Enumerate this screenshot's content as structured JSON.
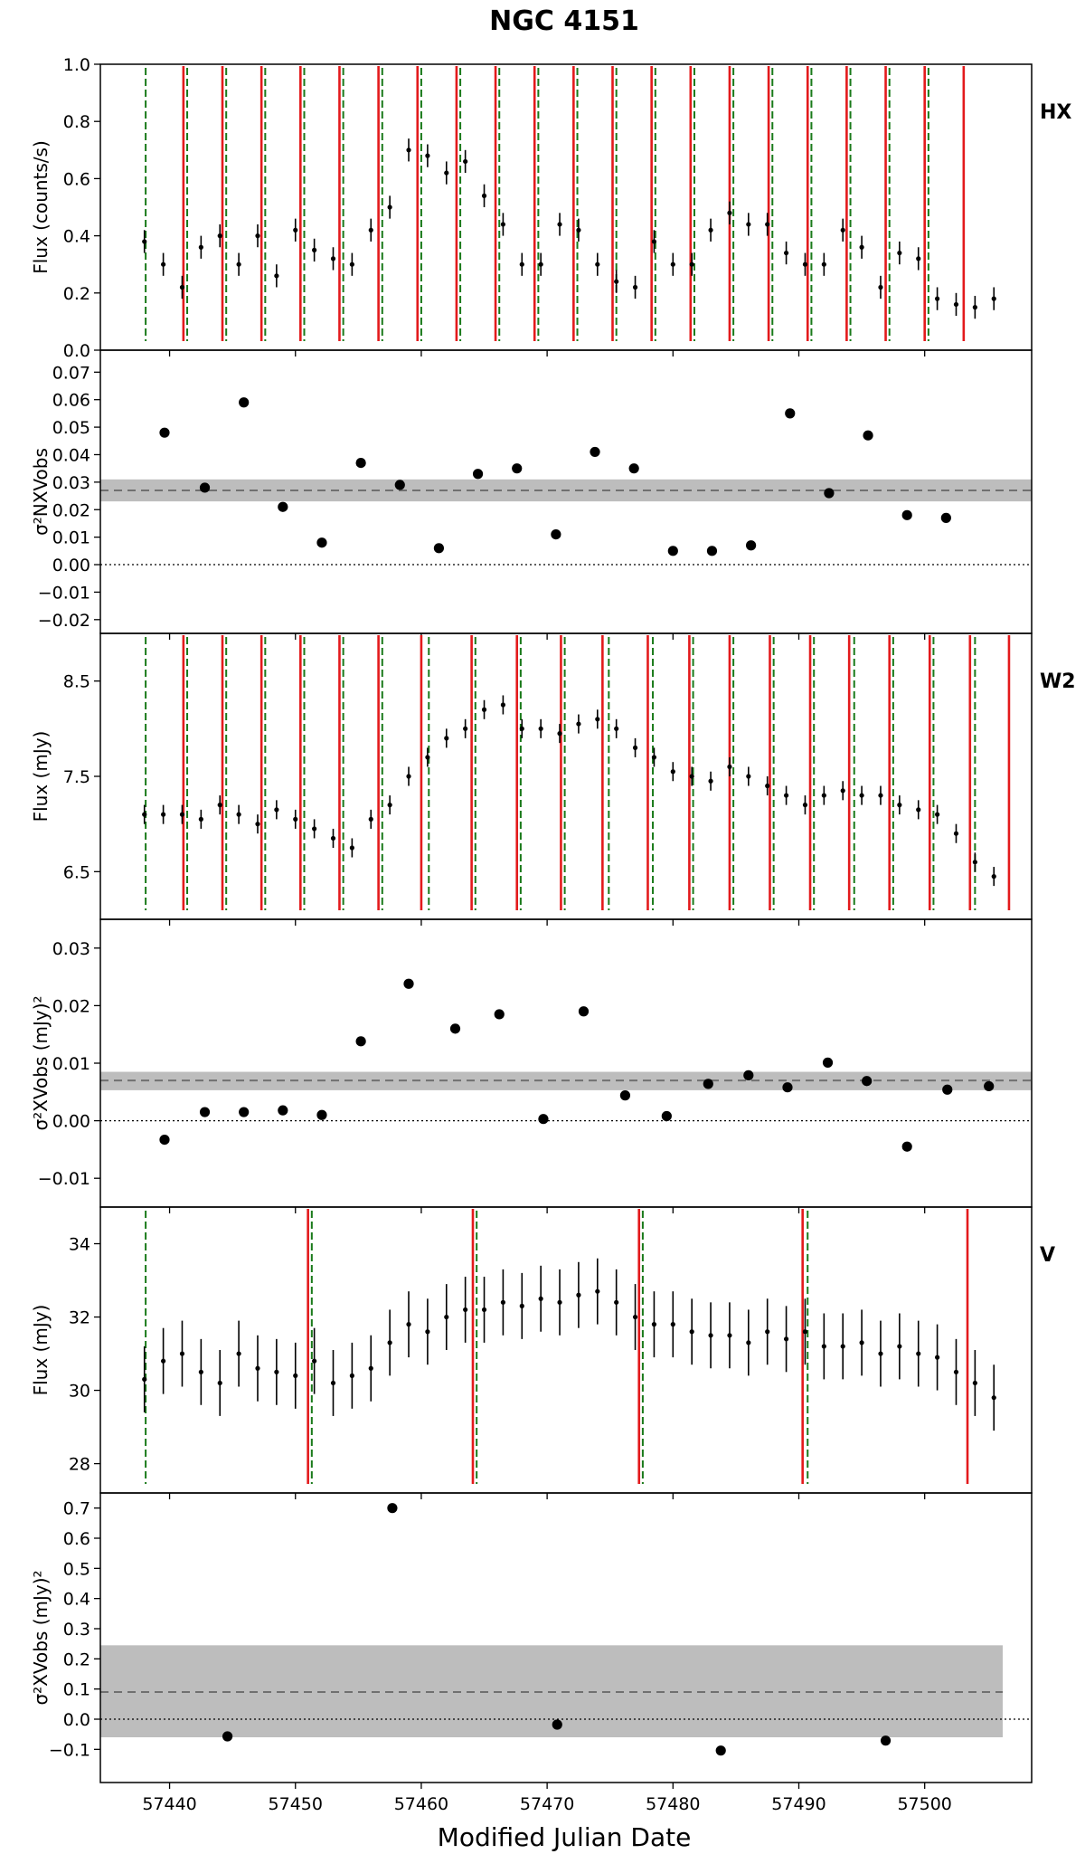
{
  "title": "NGC 4151",
  "xlabel": "Modified Julian Date",
  "chart_data": [
    {
      "id": "hx-flux",
      "type": "scatter",
      "band": "HX",
      "ylabel": "Flux (counts/s)",
      "xlim": [
        57434.5,
        57508.5
      ],
      "ylim": [
        0.0,
        1.0
      ],
      "yticks": [
        "0.0",
        "0.2",
        "0.4",
        "0.6",
        "0.8",
        "1.0"
      ],
      "yerr": 0.04,
      "series": [
        {
          "x": [
            57438.0,
            57439.5,
            57441.0,
            57442.5,
            57444.0,
            57445.5,
            57447.0,
            57448.5,
            57450.0,
            57451.5,
            57453.0,
            57454.5,
            57456.0,
            57457.5,
            57459.0,
            57460.5,
            57462.0,
            57463.5,
            57465.0,
            57466.5,
            57468.0,
            57469.5,
            57471.0,
            57472.5,
            57474.0,
            57475.5,
            57477.0,
            57478.5,
            57480.0,
            57481.5,
            57483.0,
            57484.5,
            57486.0,
            57487.5,
            57489.0,
            57490.5,
            57492.0,
            57493.5,
            57495.0,
            57496.5,
            57498.0,
            57499.5,
            57501.0,
            57502.5,
            57504.0,
            57505.5
          ],
          "y": [
            0.38,
            0.3,
            0.22,
            0.36,
            0.4,
            0.3,
            0.4,
            0.26,
            0.42,
            0.35,
            0.32,
            0.3,
            0.42,
            0.5,
            0.7,
            0.68,
            0.62,
            0.66,
            0.54,
            0.44,
            0.3,
            0.3,
            0.44,
            0.42,
            0.3,
            0.24,
            0.22,
            0.38,
            0.3,
            0.3,
            0.42,
            0.48,
            0.44,
            0.44,
            0.34,
            0.3,
            0.3,
            0.42,
            0.36,
            0.22,
            0.34,
            0.32,
            0.18,
            0.16,
            0.15,
            0.18
          ]
        }
      ],
      "green_dashed": [
        57438.1,
        57441.4,
        57444.5,
        57447.6,
        57450.7,
        57453.8,
        57456.9,
        57460.0,
        57463.1,
        57466.2,
        57469.3,
        57472.4,
        57475.5,
        57478.6,
        57481.7,
        57484.8,
        57487.9,
        57491.0,
        57494.1,
        57497.2,
        57500.3
      ],
      "red_solid": [
        57441.1,
        57444.2,
        57447.3,
        57450.4,
        57453.5,
        57456.6,
        57459.7,
        57462.8,
        57465.9,
        57469.0,
        57472.1,
        57475.2,
        57478.3,
        57481.4,
        57484.5,
        57487.6,
        57490.7,
        57493.8,
        57496.9,
        57500.0,
        57503.1
      ]
    },
    {
      "id": "hx-variance",
      "type": "scatter",
      "ylabel": "σ²NXVobs",
      "xlim": [
        57434.5,
        57508.5
      ],
      "ylim": [
        -0.025,
        0.078
      ],
      "yticks": [
        "−0.02",
        "−0.01",
        "0.00",
        "0.01",
        "0.02",
        "0.03",
        "0.04",
        "0.05",
        "0.06",
        "0.07"
      ],
      "mean": 0.027,
      "band_range": [
        0.023,
        0.031
      ],
      "series": [
        {
          "x": [
            57439.6,
            57442.8,
            57445.9,
            57449.0,
            57452.1,
            57455.2,
            57458.3,
            57461.4,
            57464.5,
            57467.6,
            57470.7,
            57473.8,
            57476.9,
            57480.0,
            57483.1,
            57486.2,
            57489.3,
            57492.4,
            57495.5,
            57498.6,
            57501.7
          ],
          "y": [
            0.048,
            0.028,
            0.059,
            0.021,
            0.008,
            0.037,
            0.029,
            0.006,
            0.033,
            0.035,
            0.011,
            0.041,
            0.035,
            0.005,
            0.005,
            0.007,
            0.055,
            0.026,
            0.047,
            0.018,
            0.017
          ]
        }
      ]
    },
    {
      "id": "w2-flux",
      "type": "scatter",
      "band": "W2",
      "ylabel": "Flux (mJy)",
      "xlim": [
        57434.5,
        57508.5
      ],
      "ylim": [
        6.0,
        9.0
      ],
      "yticks": [
        "6.5",
        "7.5",
        "8.5"
      ],
      "yerr": 0.1,
      "series": [
        {
          "x": [
            57438.0,
            57439.5,
            57441.0,
            57442.5,
            57444.0,
            57445.5,
            57447.0,
            57448.5,
            57450.0,
            57451.5,
            57453.0,
            57454.5,
            57456.0,
            57457.5,
            57459.0,
            57460.5,
            57462.0,
            57463.5,
            57465.0,
            57466.5,
            57468.0,
            57469.5,
            57471.0,
            57472.5,
            57474.0,
            57475.5,
            57477.0,
            57478.5,
            57480.0,
            57481.5,
            57483.0,
            57484.5,
            57486.0,
            57487.5,
            57489.0,
            57490.5,
            57492.0,
            57493.5,
            57495.0,
            57496.5,
            57498.0,
            57499.5,
            57501.0,
            57502.5,
            57504.0,
            57505.5
          ],
          "y": [
            7.1,
            7.1,
            7.1,
            7.05,
            7.2,
            7.1,
            7.0,
            7.15,
            7.05,
            6.95,
            6.85,
            6.75,
            7.05,
            7.2,
            7.5,
            7.7,
            7.9,
            8.0,
            8.2,
            8.25,
            8.0,
            8.0,
            7.95,
            8.05,
            8.1,
            8.0,
            7.8,
            7.7,
            7.55,
            7.5,
            7.45,
            7.6,
            7.5,
            7.4,
            7.3,
            7.2,
            7.3,
            7.35,
            7.3,
            7.3,
            7.2,
            7.15,
            7.1,
            6.9,
            6.6,
            6.45
          ]
        }
      ],
      "green_dashed": [
        57438.1,
        57441.4,
        57444.5,
        57447.6,
        57450.7,
        57453.8,
        57456.9,
        57460.6,
        57464.3,
        57467.9,
        57471.4,
        57474.9,
        57478.4,
        57481.6,
        57484.8,
        57488.0,
        57491.2,
        57494.4,
        57497.5,
        57500.7,
        57504.0
      ],
      "red_solid": [
        57441.1,
        57444.2,
        57447.3,
        57450.4,
        57453.5,
        57456.6,
        57460.0,
        57464.0,
        57467.6,
        57471.1,
        57474.4,
        57478.0,
        57481.3,
        57484.5,
        57487.7,
        57490.9,
        57494.0,
        57497.2,
        57500.4,
        57503.6,
        57506.7
      ]
    },
    {
      "id": "w2-variance",
      "type": "scatter",
      "ylabel": "σ²XVobs (mJy)²",
      "xlim": [
        57434.5,
        57508.5
      ],
      "ylim": [
        -0.015,
        0.035
      ],
      "yticks": [
        "−0.01",
        "0.00",
        "0.01",
        "0.02",
        "0.03"
      ],
      "mean": 0.007,
      "band_range": [
        0.0053,
        0.0085
      ],
      "series": [
        {
          "x": [
            57439.6,
            57442.8,
            57445.9,
            57449.0,
            57452.1,
            57455.2,
            57459.0,
            57462.7,
            57466.2,
            57469.7,
            57472.9,
            57476.2,
            57479.5,
            57482.8,
            57486.0,
            57489.1,
            57492.3,
            57495.4,
            57498.6,
            57501.8,
            57505.1
          ],
          "y": [
            -0.0033,
            0.0015,
            0.0015,
            0.0018,
            0.001,
            0.0138,
            0.0238,
            0.016,
            0.0185,
            0.0003,
            0.019,
            0.0044,
            0.0008,
            0.0064,
            0.0079,
            0.0058,
            0.0101,
            0.0069,
            -0.0045,
            0.0054,
            0.006
          ]
        }
      ]
    },
    {
      "id": "v-flux",
      "type": "scatter",
      "band": "V",
      "ylabel": "Flux (mJy)",
      "xlim": [
        57434.5,
        57508.5
      ],
      "ylim": [
        27.2,
        35.0
      ],
      "yticks": [
        "28",
        "30",
        "32",
        "34"
      ],
      "yerr": 0.9,
      "series": [
        {
          "x": [
            57438.0,
            57439.5,
            57441.0,
            57442.5,
            57444.0,
            57445.5,
            57447.0,
            57448.5,
            57450.0,
            57451.5,
            57453.0,
            57454.5,
            57456.0,
            57457.5,
            57459.0,
            57460.5,
            57462.0,
            57463.5,
            57465.0,
            57466.5,
            57468.0,
            57469.5,
            57471.0,
            57472.5,
            57474.0,
            57475.5,
            57477.0,
            57478.5,
            57480.0,
            57481.5,
            57483.0,
            57484.5,
            57486.0,
            57487.5,
            57489.0,
            57490.5,
            57492.0,
            57493.5,
            57495.0,
            57496.5,
            57498.0,
            57499.5,
            57501.0,
            57502.5,
            57504.0,
            57505.5
          ],
          "y": [
            30.3,
            30.8,
            31.0,
            30.5,
            30.2,
            31.0,
            30.6,
            30.5,
            30.4,
            30.8,
            30.2,
            30.4,
            30.6,
            31.3,
            31.8,
            31.6,
            32.0,
            32.2,
            32.2,
            32.4,
            32.3,
            32.5,
            32.4,
            32.6,
            32.7,
            32.4,
            32.0,
            31.8,
            31.8,
            31.6,
            31.5,
            31.5,
            31.3,
            31.6,
            31.4,
            31.6,
            31.2,
            31.2,
            31.3,
            31.0,
            31.2,
            31.0,
            30.9,
            30.5,
            30.2,
            29.8
          ]
        }
      ],
      "green_dashed": [
        57438.1,
        57451.3,
        57464.4,
        57477.6,
        57490.7
      ],
      "red_solid": [
        57451.0,
        57464.1,
        57477.3,
        57490.3,
        57503.4
      ]
    },
    {
      "id": "v-variance",
      "type": "scatter",
      "ylabel": "σ²XVobs (mJy)²",
      "xlim": [
        57434.5,
        57508.5
      ],
      "ylim": [
        -0.21,
        0.75
      ],
      "yticks": [
        "−0.1",
        "0.0",
        "0.1",
        "0.2",
        "0.3",
        "0.4",
        "0.5",
        "0.6",
        "0.7"
      ],
      "mean": 0.09,
      "band_range": [
        -0.06,
        0.245
      ],
      "band_x": [
        57434.5,
        57506.2
      ],
      "series": [
        {
          "x": [
            57444.6,
            57457.7,
            57470.8,
            57483.8,
            57496.9
          ],
          "y": [
            -0.057,
            0.7,
            -0.018,
            -0.104,
            -0.071
          ]
        }
      ]
    }
  ],
  "xticks": [
    "57440",
    "57450",
    "57460",
    "57470",
    "57480",
    "57490",
    "57500"
  ],
  "xtick_values": [
    57440,
    57450,
    57460,
    57470,
    57480,
    57490,
    57500
  ],
  "colors": {
    "red_line": "#e31a1c",
    "green_line": "#1a7a1a",
    "band_fill": "#bdbdbd",
    "mean_line": "#707070",
    "points": "#000000"
  }
}
